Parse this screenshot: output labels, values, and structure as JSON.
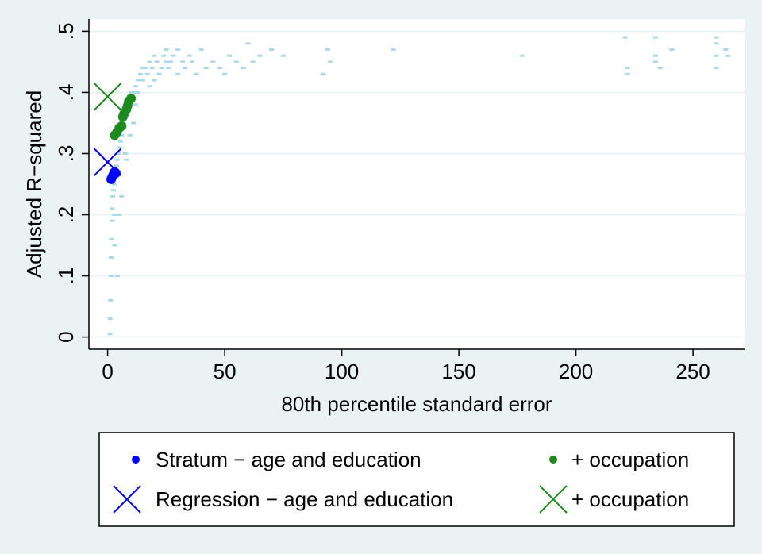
{
  "chart_data": {
    "type": "scatter",
    "xlabel": "80th percentile standard error",
    "ylabel": "Adjusted R−squared",
    "xlim": [
      -8,
      272
    ],
    "ylim": [
      -0.02,
      0.52
    ],
    "xticks": [
      0,
      50,
      100,
      150,
      200,
      250
    ],
    "xtick_labels": [
      "0",
      "50",
      "100",
      "150",
      "200",
      "250"
    ],
    "yticks": [
      0,
      0.1,
      0.2,
      0.3,
      0.4,
      0.5
    ],
    "ytick_labels": [
      "0",
      ".1",
      ".2",
      ".3",
      ".4",
      ".5"
    ],
    "grid": true,
    "legend_placement": "bottom",
    "background_points": {
      "color": "#add8e6",
      "x": [
        1,
        1,
        1.2,
        1.4,
        1.5,
        1.6,
        2,
        2,
        2.2,
        2.5,
        2.8,
        3,
        3,
        3.2,
        3.5,
        3.8,
        4,
        4.2,
        4.5,
        5,
        5,
        5.5,
        6,
        6,
        6.5,
        7,
        7.5,
        8,
        8,
        8.5,
        9,
        9.5,
        10,
        10,
        11,
        11,
        12,
        12,
        13,
        13,
        14,
        15,
        15,
        16,
        17,
        18,
        18,
        19,
        20,
        20,
        21,
        22,
        23,
        24,
        25,
        25,
        26,
        27,
        28,
        30,
        30,
        32,
        33,
        35,
        36,
        38,
        40,
        42,
        45,
        48,
        50,
        52,
        55,
        58,
        60,
        62,
        65,
        70,
        75,
        92,
        94,
        95,
        122,
        177,
        221,
        222,
        222,
        234,
        234,
        234,
        236,
        241,
        260,
        260,
        260,
        260,
        264,
        265
      ],
      "y": [
        0.005,
        0.03,
        0.06,
        0.1,
        0.13,
        0.16,
        0.19,
        0.21,
        0.23,
        0.24,
        0.25,
        0.2,
        0.15,
        0.26,
        0.27,
        0.28,
        0.29,
        0.1,
        0.3,
        0.31,
        0.2,
        0.32,
        0.33,
        0.23,
        0.34,
        0.35,
        0.3,
        0.36,
        0.29,
        0.37,
        0.38,
        0.33,
        0.39,
        0.4,
        0.4,
        0.35,
        0.41,
        0.38,
        0.42,
        0.4,
        0.43,
        0.44,
        0.42,
        0.44,
        0.43,
        0.45,
        0.41,
        0.44,
        0.46,
        0.42,
        0.45,
        0.43,
        0.44,
        0.46,
        0.47,
        0.45,
        0.44,
        0.45,
        0.46,
        0.43,
        0.47,
        0.45,
        0.44,
        0.46,
        0.45,
        0.43,
        0.47,
        0.44,
        0.45,
        0.44,
        0.43,
        0.46,
        0.45,
        0.44,
        0.48,
        0.45,
        0.46,
        0.47,
        0.46,
        0.43,
        0.47,
        0.45,
        0.47,
        0.46,
        0.49,
        0.44,
        0.43,
        0.49,
        0.46,
        0.45,
        0.44,
        0.47,
        0.49,
        0.46,
        0.44,
        0.48,
        0.47,
        0.46
      ]
    },
    "series": [
      {
        "name": "Stratum − age and education",
        "marker": "dot",
        "color": "#0000ff",
        "x": [
          1.5,
          2,
          2.5,
          3,
          3.5
        ],
        "y": [
          0.258,
          0.262,
          0.266,
          0.27,
          0.268
        ]
      },
      {
        "name": "+ occupation",
        "marker": "dot",
        "color": "#1c8a1c",
        "x": [
          3,
          4,
          5,
          6,
          6.5,
          7,
          8,
          8.5,
          9,
          10
        ],
        "y": [
          0.33,
          0.335,
          0.342,
          0.345,
          0.36,
          0.365,
          0.372,
          0.378,
          0.385,
          0.39
        ]
      },
      {
        "name": "Regression − age and education",
        "marker": "x",
        "color": "#0000ff",
        "x": [
          0
        ],
        "y": [
          0.286
        ]
      },
      {
        "name": "+ occupation",
        "marker": "x",
        "color": "#1c8a1c",
        "x": [
          0
        ],
        "y": [
          0.393
        ]
      }
    ]
  }
}
